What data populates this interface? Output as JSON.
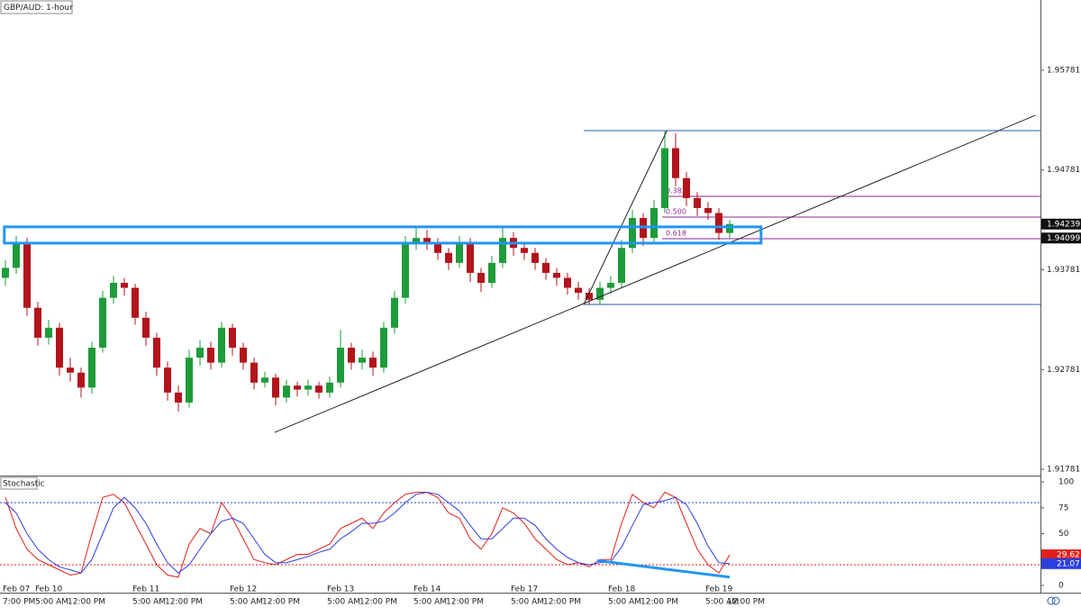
{
  "chart_data": [
    {
      "type": "candlestick",
      "title": "GBP/AUD: 1-hour",
      "categories": [
        "Feb 07",
        null,
        null,
        "Feb 10",
        null,
        null,
        null,
        null,
        null,
        null,
        null,
        null,
        "Feb 11",
        null,
        null,
        null,
        null,
        null,
        null,
        null,
        null,
        "Feb 12",
        null,
        null,
        null,
        null,
        null,
        null,
        null,
        null,
        "Feb 13",
        null,
        null,
        null,
        null,
        null,
        null,
        null,
        "Feb 14",
        null,
        null,
        null,
        null,
        null,
        null,
        null,
        null,
        "Feb 17",
        null,
        null,
        null,
        null,
        null,
        null,
        null,
        null,
        "Feb 18",
        null,
        null,
        null,
        null,
        null,
        null,
        null,
        null,
        "Feb 19",
        null,
        null
      ],
      "time_labels": [
        "7:00 PM",
        null,
        null,
        "5:00 AM",
        null,
        null,
        "12:00 PM",
        null,
        null,
        null,
        null,
        null,
        "5:00 AM",
        null,
        null,
        "12:00 PM",
        null,
        null,
        null,
        null,
        null,
        "5:00 AM",
        null,
        null,
        "12:00 PM",
        null,
        null,
        null,
        null,
        null,
        "5:00 AM",
        null,
        null,
        "12:00 PM",
        null,
        null,
        null,
        null,
        "5:00 AM",
        null,
        null,
        "12:00 PM",
        null,
        null,
        null,
        null,
        null,
        "5:00 AM",
        null,
        null,
        "12:00 PM",
        null,
        null,
        null,
        null,
        null,
        "5:00 AM",
        null,
        null,
        "12:00 PM",
        null,
        null,
        null,
        null,
        null,
        "5:00 AM",
        null,
        "12:00 PM"
      ],
      "open": [
        1.937,
        1.938,
        1.9405,
        1.934,
        1.931,
        1.932,
        1.928,
        1.9275,
        1.926,
        1.93,
        1.935,
        1.9365,
        1.936,
        1.933,
        1.931,
        1.928,
        1.9255,
        1.9245,
        1.929,
        1.93,
        1.9285,
        1.932,
        1.93,
        1.9285,
        1.9265,
        1.927,
        1.925,
        1.9262,
        1.9258,
        1.9262,
        1.9255,
        1.9265,
        1.93,
        1.9285,
        1.929,
        1.928,
        1.932,
        1.935,
        1.9405,
        1.941,
        1.9405,
        1.9395,
        1.9385,
        1.9405,
        1.9375,
        1.9365,
        1.9385,
        1.941,
        1.94,
        1.9395,
        1.9385,
        1.9375,
        1.937,
        1.936,
        1.9355,
        1.9348,
        1.936,
        1.9365,
        1.94,
        1.943,
        1.941,
        1.944,
        1.95,
        1.947,
        1.945,
        1.944,
        1.9435,
        1.9415
      ],
      "high": [
        1.9388,
        1.9412,
        1.941,
        1.9346,
        1.9328,
        1.9325,
        1.929,
        1.928,
        1.9306,
        1.9357,
        1.9372,
        1.937,
        1.9364,
        1.9336,
        1.9315,
        1.9286,
        1.9262,
        1.9298,
        1.9308,
        1.9306,
        1.9326,
        1.9324,
        1.9305,
        1.929,
        1.9276,
        1.9274,
        1.9268,
        1.9266,
        1.9268,
        1.9266,
        1.9271,
        1.9318,
        1.9305,
        1.9298,
        1.9296,
        1.9326,
        1.9357,
        1.9412,
        1.942,
        1.9418,
        1.941,
        1.94,
        1.9412,
        1.941,
        1.938,
        1.9392,
        1.942,
        1.9416,
        1.9405,
        1.94,
        1.939,
        1.938,
        1.9375,
        1.9366,
        1.936,
        1.9366,
        1.9372,
        1.9408,
        1.9438,
        1.9435,
        1.9448,
        1.9518,
        1.9515,
        1.9476,
        1.9456,
        1.9446,
        1.944,
        1.9428
      ],
      "low": [
        1.9362,
        1.9374,
        1.9332,
        1.9302,
        1.9303,
        1.9272,
        1.9266,
        1.925,
        1.9254,
        1.9295,
        1.9344,
        1.9352,
        1.9323,
        1.9302,
        1.9272,
        1.9247,
        1.9236,
        1.924,
        1.9282,
        1.9278,
        1.928,
        1.9292,
        1.9278,
        1.9258,
        1.926,
        1.9242,
        1.9245,
        1.9251,
        1.9252,
        1.9249,
        1.925,
        1.926,
        1.9278,
        1.9278,
        1.9272,
        1.9275,
        1.9314,
        1.9344,
        1.9398,
        1.9398,
        1.9388,
        1.9378,
        1.938,
        1.9366,
        1.9356,
        1.936,
        1.938,
        1.9392,
        1.9388,
        1.9378,
        1.9368,
        1.9362,
        1.9353,
        1.9348,
        1.9343,
        1.9343,
        1.9354,
        1.936,
        1.9395,
        1.9402,
        1.9405,
        1.9435,
        1.9462,
        1.9442,
        1.9432,
        1.9428,
        1.9408,
        1.941
      ],
      "close": [
        1.938,
        1.9405,
        1.934,
        1.931,
        1.932,
        1.928,
        1.9275,
        1.926,
        1.93,
        1.935,
        1.9365,
        1.936,
        1.933,
        1.931,
        1.928,
        1.9255,
        1.9245,
        1.929,
        1.93,
        1.9285,
        1.932,
        1.93,
        1.9285,
        1.9265,
        1.927,
        1.925,
        1.9262,
        1.9258,
        1.9262,
        1.9255,
        1.9265,
        1.93,
        1.9285,
        1.929,
        1.928,
        1.932,
        1.935,
        1.9405,
        1.941,
        1.9405,
        1.9395,
        1.9385,
        1.9405,
        1.9375,
        1.9365,
        1.9385,
        1.941,
        1.94,
        1.9395,
        1.9385,
        1.9375,
        1.937,
        1.936,
        1.9355,
        1.9348,
        1.936,
        1.9365,
        1.94,
        1.943,
        1.941,
        1.944,
        1.95,
        1.947,
        1.945,
        1.944,
        1.9435,
        1.9415,
        1.9424
      ],
      "up_color": "#1e9b3a",
      "down_color": "#b3141c",
      "ylim": [
        1.91718,
        1.96485
      ],
      "yticks": [
        1.91781,
        1.92781,
        1.93781,
        1.94781,
        1.95781
      ],
      "price_markers": [
        1.94239,
        1.94099
      ],
      "zone": {
        "y": [
          1.94048,
          1.94211
        ],
        "x": [
          -0.1,
          69.9
        ],
        "color": "#2196f3"
      },
      "trendline": {
        "x": [
          24.9,
          95.3
        ],
        "y": [
          1.92151,
          1.9533
        ],
        "color": "#222222"
      },
      "swing_line": {
        "x": [
          53.5,
          61.2
        ],
        "y": [
          1.93433,
          1.95176
        ],
        "color": "#222222"
      },
      "levels": [
        {
          "value": 1.95176,
          "x_start": 53.5,
          "color": "#2a5caa"
        },
        {
          "value": 1.93433,
          "x_start": 53.5,
          "color": "#2a5caa"
        }
      ],
      "fib": [
        {
          "label": "0.382",
          "value": 1.94517,
          "x_start": 60.75
        },
        {
          "label": "0.500",
          "value": 1.94309,
          "x_start": 60.75
        },
        {
          "label": "0.618",
          "value": 1.94093,
          "x_start": 60.75
        }
      ],
      "fib_color": "#8e2a8e"
    },
    {
      "type": "line",
      "title": "Stochastic",
      "series": [
        {
          "name": "%K",
          "color": "#e0201b",
          "values": [
            85,
            55,
            35,
            25,
            20,
            15,
            10,
            12,
            50,
            85,
            88,
            80,
            60,
            40,
            20,
            10,
            8,
            40,
            55,
            50,
            80,
            65,
            45,
            25,
            22,
            20,
            25,
            30,
            30,
            35,
            40,
            55,
            60,
            65,
            55,
            70,
            80,
            88,
            90,
            90,
            85,
            70,
            65,
            45,
            35,
            50,
            75,
            70,
            60,
            45,
            35,
            25,
            20,
            22,
            18,
            25,
            25,
            60,
            88,
            80,
            75,
            90,
            85,
            60,
            35,
            20,
            12,
            29.62
          ]
        },
        {
          "name": "%D",
          "color": "#2b3fe0",
          "values": [
            80,
            70,
            50,
            35,
            25,
            18,
            15,
            12,
            25,
            50,
            75,
            85,
            75,
            60,
            40,
            22,
            12,
            20,
            35,
            50,
            62,
            65,
            60,
            45,
            30,
            22,
            22,
            25,
            28,
            32,
            35,
            45,
            52,
            60,
            60,
            62,
            70,
            80,
            88,
            90,
            88,
            80,
            72,
            58,
            45,
            45,
            55,
            65,
            65,
            58,
            45,
            35,
            27,
            22,
            20,
            22,
            23,
            37,
            58,
            78,
            80,
            82,
            85,
            78,
            60,
            38,
            22,
            21.07
          ]
        }
      ],
      "ylim": [
        -6.96,
        104.35
      ],
      "yticks": [
        0,
        25,
        50,
        75,
        100
      ],
      "levels": [
        {
          "value": 80,
          "color": "#2b3fe0"
        },
        {
          "value": 20,
          "color": "#e0201b"
        }
      ],
      "divergence": {
        "x": [
          54.75,
          67
        ],
        "y": [
          24,
          8
        ],
        "color": "#2196f3"
      }
    }
  ]
}
